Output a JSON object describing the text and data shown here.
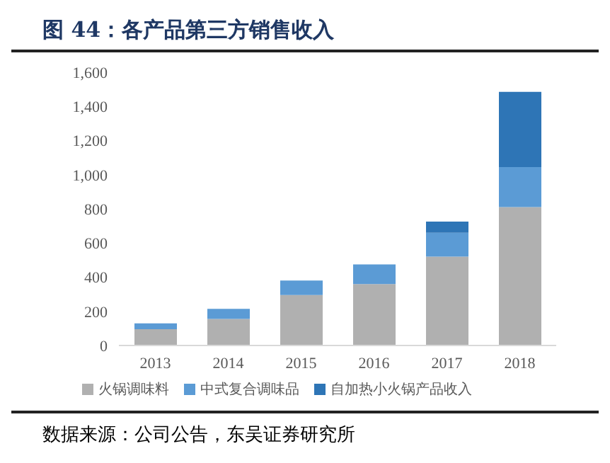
{
  "chart_data": {
    "type": "bar",
    "title": "图 44：各产品第三方销售收入",
    "categories": [
      "2013",
      "2014",
      "2015",
      "2016",
      "2017",
      "2018"
    ],
    "series": [
      {
        "name": "火锅调味料",
        "color": "#b0b0b0",
        "values": [
          95,
          155,
          295,
          360,
          520,
          810
        ]
      },
      {
        "name": "中式复合调味品",
        "color": "#5b9bd5",
        "values": [
          35,
          60,
          85,
          115,
          140,
          235
        ]
      },
      {
        "name": "自加热小火锅产品收入",
        "color": "#2e75b6",
        "values": [
          null,
          null,
          null,
          null,
          65,
          440
        ]
      }
    ],
    "stacked": true,
    "ylim": [
      0,
      1600
    ],
    "yticks": [
      0,
      200,
      400,
      600,
      800,
      {
        "value": 1000,
        "label": "1,000"
      },
      {
        "value": 1200,
        "label": "1,200"
      },
      {
        "value": 1400,
        "label": "1,400"
      },
      {
        "value": 1600,
        "label": "1,600"
      }
    ],
    "grid": false,
    "legend": "bottom",
    "annotations": [
      "数据来源：公司公告，东吴证券研究所"
    ]
  }
}
